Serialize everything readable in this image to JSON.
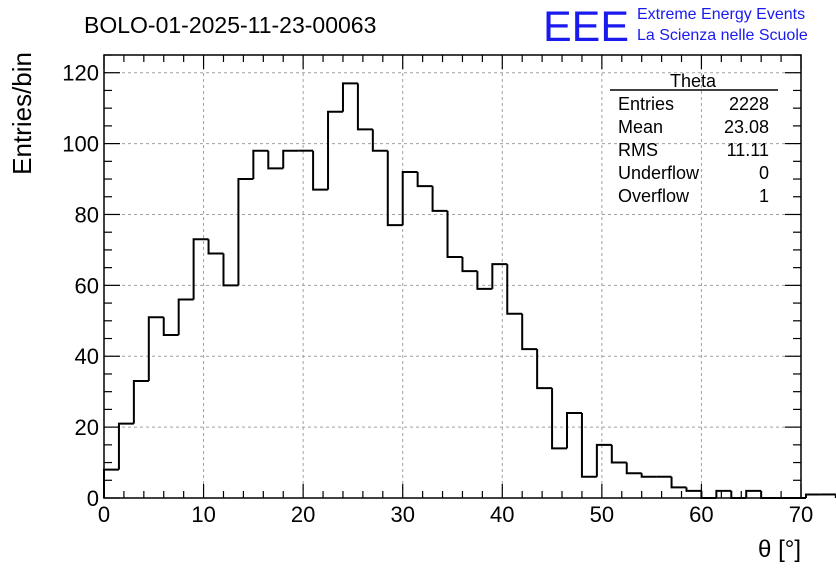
{
  "chart_data": {
    "type": "histogram",
    "title": "BOLO-01-2025-11-23-00063",
    "xlabel": "θ [°]",
    "ylabel": "Entries/bin",
    "xlim": [
      0,
      70
    ],
    "ylim": [
      0,
      125
    ],
    "grid": true,
    "bin_width": 1.5,
    "x_ticks": [
      0,
      10,
      20,
      30,
      40,
      50,
      60,
      70
    ],
    "y_ticks": [
      0,
      20,
      40,
      60,
      80,
      100,
      120
    ],
    "counts": [
      8,
      21,
      33,
      51,
      46,
      56,
      73,
      69,
      60,
      90,
      98,
      93,
      98,
      98,
      87,
      109,
      117,
      104,
      98,
      77,
      92,
      88,
      81,
      68,
      64,
      59,
      66,
      52,
      42,
      31,
      14,
      24,
      6,
      15,
      10,
      7,
      6,
      6,
      3,
      2,
      0,
      2,
      0,
      2,
      0,
      0,
      0,
      1,
      1
    ],
    "line_color": "#000000"
  },
  "logo": {
    "mark": "EEE",
    "line1": "Extreme Energy Events",
    "line2": "La Scienza nelle Scuole",
    "color": "#1a1aee"
  },
  "stats": {
    "title": "Theta",
    "rows": [
      {
        "label": "Entries",
        "value": "2228"
      },
      {
        "label": "Mean",
        "value": "23.08"
      },
      {
        "label": "RMS",
        "value": "11.11"
      },
      {
        "label": "Underflow",
        "value": "0"
      },
      {
        "label": "Overflow",
        "value": "1"
      }
    ]
  }
}
